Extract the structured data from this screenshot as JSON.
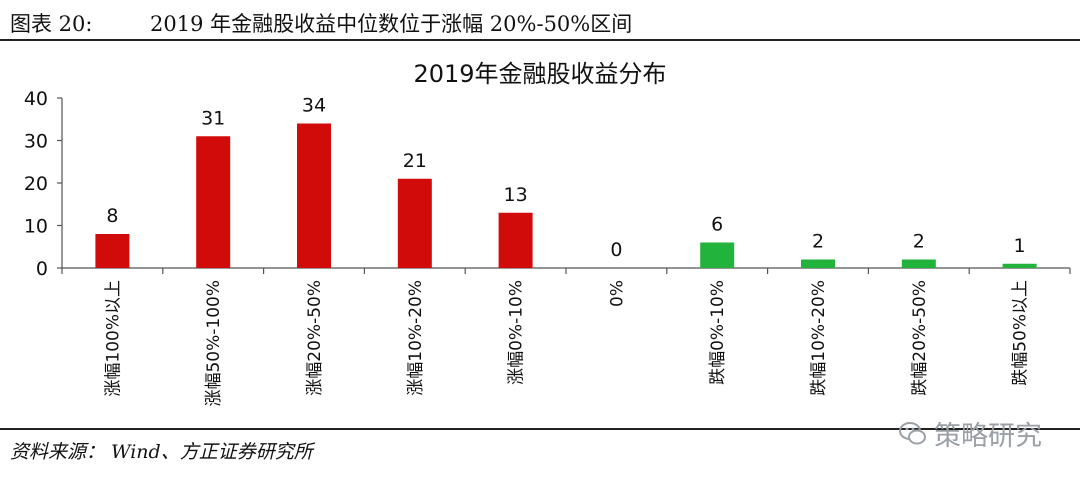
{
  "figure": {
    "label": "图表 20:",
    "title": "2019 年金融股收益中位数位于涨幅 20%-50%区间"
  },
  "source": "资料来源： Wind、方正证券研究所",
  "watermark": {
    "text": "策略研究",
    "icon": "wechat-icon"
  },
  "chart_data": {
    "type": "bar",
    "title": "2019年金融股收益分布",
    "categories": [
      "涨幅100%以上",
      "涨幅50%-100%",
      "涨幅20%-50%",
      "涨幅10%-20%",
      "涨幅0%-10%",
      "0%",
      "跌幅0%-10%",
      "跌幅10%-20%",
      "跌幅20%-50%",
      "跌幅50%以上"
    ],
    "values": [
      8,
      31,
      34,
      21,
      13,
      0,
      6,
      2,
      2,
      1
    ],
    "colors": [
      "#d10a0a",
      "#d10a0a",
      "#d10a0a",
      "#d10a0a",
      "#d10a0a",
      "#d10a0a",
      "#22b33c",
      "#22b33c",
      "#22b33c",
      "#22b33c"
    ],
    "ylim": [
      0,
      40
    ],
    "yticks": [
      0,
      10,
      20,
      30,
      40
    ],
    "xlabel": "",
    "ylabel": "",
    "grid": false,
    "legend": "none"
  }
}
